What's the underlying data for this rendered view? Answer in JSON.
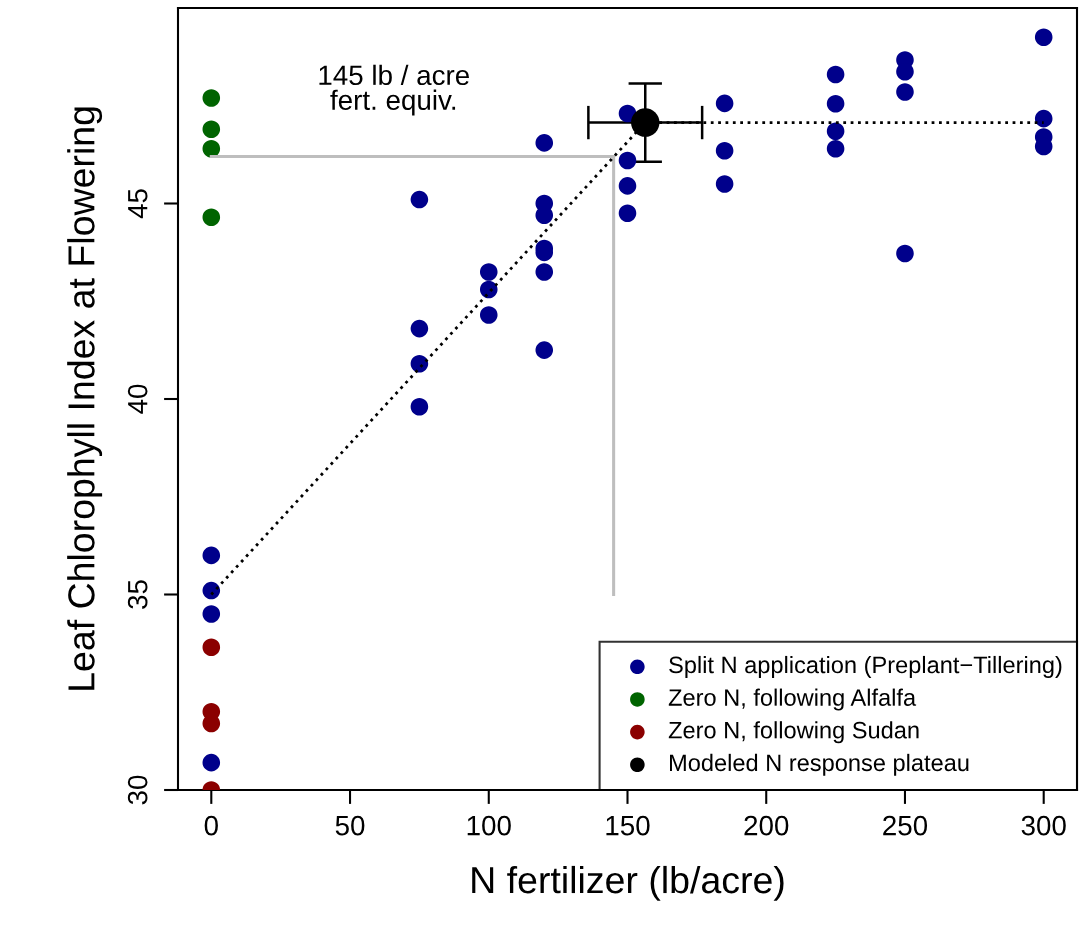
{
  "chart_data": {
    "type": "scatter",
    "xlabel": "N fertilizer (lb/acre)",
    "ylabel": "Leaf Chlorophyll Index at Flowering",
    "xlim": [
      -12,
      312
    ],
    "ylim": [
      30,
      50
    ],
    "xticks": [
      0,
      50,
      100,
      150,
      200,
      250,
      300
    ],
    "yticks": [
      30,
      35,
      40,
      45
    ],
    "grid": false,
    "legend": "bottom right",
    "marker": "circle",
    "annotations": [
      "145 lb / acre\nfert. equiv."
    ],
    "series": [
      {
        "type": "line",
        "color": "#bebebe",
        "line_style": "solid",
        "marker": "none",
        "x": [
          0,
          145,
          145
        ],
        "values": [
          46.2,
          46.2,
          35
        ]
      },
      {
        "type": "line",
        "color": "#000000",
        "line_style": "dotted",
        "marker": "none",
        "x": [
          0,
          156.4,
          300
        ],
        "values": [
          35,
          47.07,
          47.07
        ]
      },
      {
        "name": "Split N application (Preplant−Tillering)",
        "color": "#00008b",
        "x": [
          0,
          0,
          0,
          0,
          75,
          75,
          75,
          75,
          100,
          100,
          100,
          120,
          120,
          120,
          120,
          120,
          120,
          120,
          150,
          150,
          150,
          150,
          185,
          185,
          185,
          225,
          225,
          225,
          225,
          250,
          250,
          250,
          250,
          300,
          300,
          300,
          300
        ],
        "values": [
          36.0,
          35.1,
          34.5,
          30.7,
          45.1,
          41.8,
          40.9,
          39.8,
          43.25,
          42.8,
          42.15,
          46.55,
          45.0,
          44.7,
          43.85,
          43.75,
          43.25,
          41.25,
          47.3,
          46.1,
          45.45,
          44.75,
          47.56,
          46.35,
          45.5,
          48.3,
          47.55,
          46.85,
          46.4,
          48.67,
          48.37,
          47.85,
          43.72,
          49.25,
          47.17,
          46.7,
          46.46
        ]
      },
      {
        "name": "Zero N, following Alfalfa",
        "color": "#006400",
        "x": [
          0,
          0,
          0,
          0
        ],
        "values": [
          47.7,
          46.9,
          46.4,
          44.65
        ]
      },
      {
        "name": "Zero N, following Sudan",
        "color": "#8b0000",
        "x": [
          0,
          0,
          0,
          0
        ],
        "values": [
          33.65,
          32.0,
          31.7,
          30.0
        ]
      },
      {
        "name": "Modeled N response plateau",
        "color": "#000000",
        "x": [
          156.4
        ],
        "values": [
          47.07
        ],
        "errors": [
          1.0
        ],
        "xerrors": [
          20.5
        ]
      }
    ]
  }
}
